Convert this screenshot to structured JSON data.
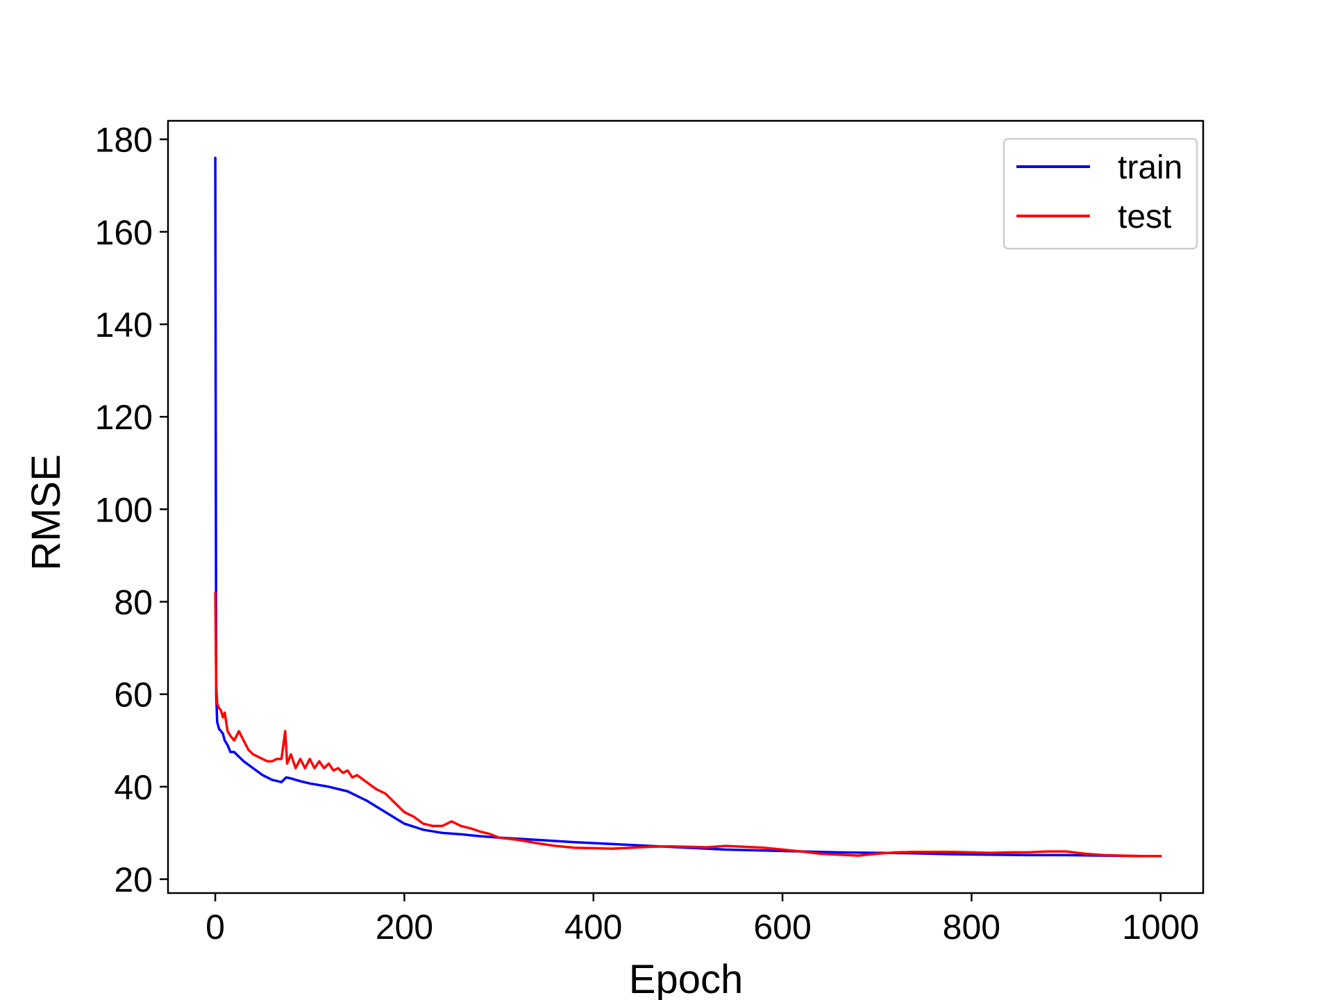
{
  "chart_data": {
    "type": "line",
    "xlabel": "Epoch",
    "ylabel": "RMSE",
    "xlim": [
      -50,
      1045
    ],
    "ylim": [
      17,
      184
    ],
    "xticks": [
      0,
      200,
      400,
      600,
      800,
      1000
    ],
    "yticks": [
      20,
      40,
      60,
      80,
      100,
      120,
      140,
      160,
      180
    ],
    "xtick_labels": [
      "0",
      "200",
      "400",
      "600",
      "800",
      "1000"
    ],
    "ytick_labels": [
      "20",
      "40",
      "60",
      "80",
      "100",
      "120",
      "140",
      "160",
      "180"
    ],
    "grid": false,
    "legend_position": "top-right",
    "series": [
      {
        "name": "train",
        "color": "#0000ff",
        "x": [
          0,
          1,
          2,
          4,
          6,
          8,
          10,
          13,
          16,
          20,
          25,
          30,
          40,
          50,
          60,
          70,
          75,
          80,
          90,
          100,
          120,
          140,
          160,
          180,
          200,
          220,
          240,
          260,
          280,
          300,
          340,
          380,
          420,
          460,
          500,
          540,
          580,
          620,
          660,
          700,
          740,
          780,
          820,
          860,
          900,
          940,
          980,
          1000
        ],
        "y": [
          176,
          60,
          54,
          52.5,
          52,
          51.5,
          50,
          49,
          47.5,
          47.5,
          46.5,
          45.5,
          44,
          42.5,
          41.5,
          41,
          42,
          41.8,
          41.2,
          40.7,
          40,
          39,
          37,
          34.5,
          32,
          30.7,
          30,
          29.7,
          29.3,
          29,
          28.5,
          28,
          27.6,
          27.2,
          26.8,
          26.4,
          26.2,
          26,
          25.8,
          25.7,
          25.6,
          25.4,
          25.3,
          25.2,
          25.2,
          25.1,
          25,
          25
        ]
      },
      {
        "name": "test",
        "color": "#ff0000",
        "x": [
          0,
          1,
          2,
          4,
          6,
          8,
          10,
          13,
          16,
          20,
          25,
          30,
          35,
          40,
          45,
          50,
          55,
          60,
          65,
          70,
          74,
          76,
          80,
          85,
          90,
          95,
          100,
          105,
          110,
          115,
          120,
          125,
          130,
          135,
          140,
          145,
          150,
          160,
          170,
          180,
          190,
          200,
          210,
          220,
          230,
          240,
          250,
          260,
          270,
          280,
          290,
          300,
          320,
          340,
          360,
          380,
          400,
          420,
          440,
          460,
          480,
          500,
          520,
          540,
          560,
          580,
          600,
          620,
          640,
          660,
          680,
          700,
          720,
          740,
          760,
          780,
          800,
          820,
          840,
          860,
          880,
          900,
          920,
          940,
          960,
          980,
          1000
        ],
        "y": [
          82,
          62,
          58,
          57,
          56.5,
          55,
          56,
          52,
          51,
          50,
          52,
          50,
          48,
          47,
          46.5,
          46,
          45.5,
          45.5,
          46,
          46,
          52,
          45,
          47,
          44,
          46,
          44,
          46,
          44,
          45.5,
          44,
          45,
          43.5,
          44,
          43,
          43.5,
          42,
          42.5,
          41,
          39.5,
          38.5,
          36.5,
          34.5,
          33.5,
          32,
          31.5,
          31.5,
          32.5,
          31.5,
          31,
          30.3,
          29.8,
          29,
          28.5,
          27.8,
          27.2,
          26.8,
          26.7,
          26.6,
          26.8,
          27,
          27.1,
          27,
          26.9,
          27.2,
          27,
          26.8,
          26.4,
          26,
          25.5,
          25.3,
          25.1,
          25.5,
          25.8,
          25.9,
          25.9,
          25.9,
          25.8,
          25.7,
          25.8,
          25.8,
          26,
          26,
          25.5,
          25.2,
          25.1,
          25,
          25
        ]
      }
    ]
  }
}
